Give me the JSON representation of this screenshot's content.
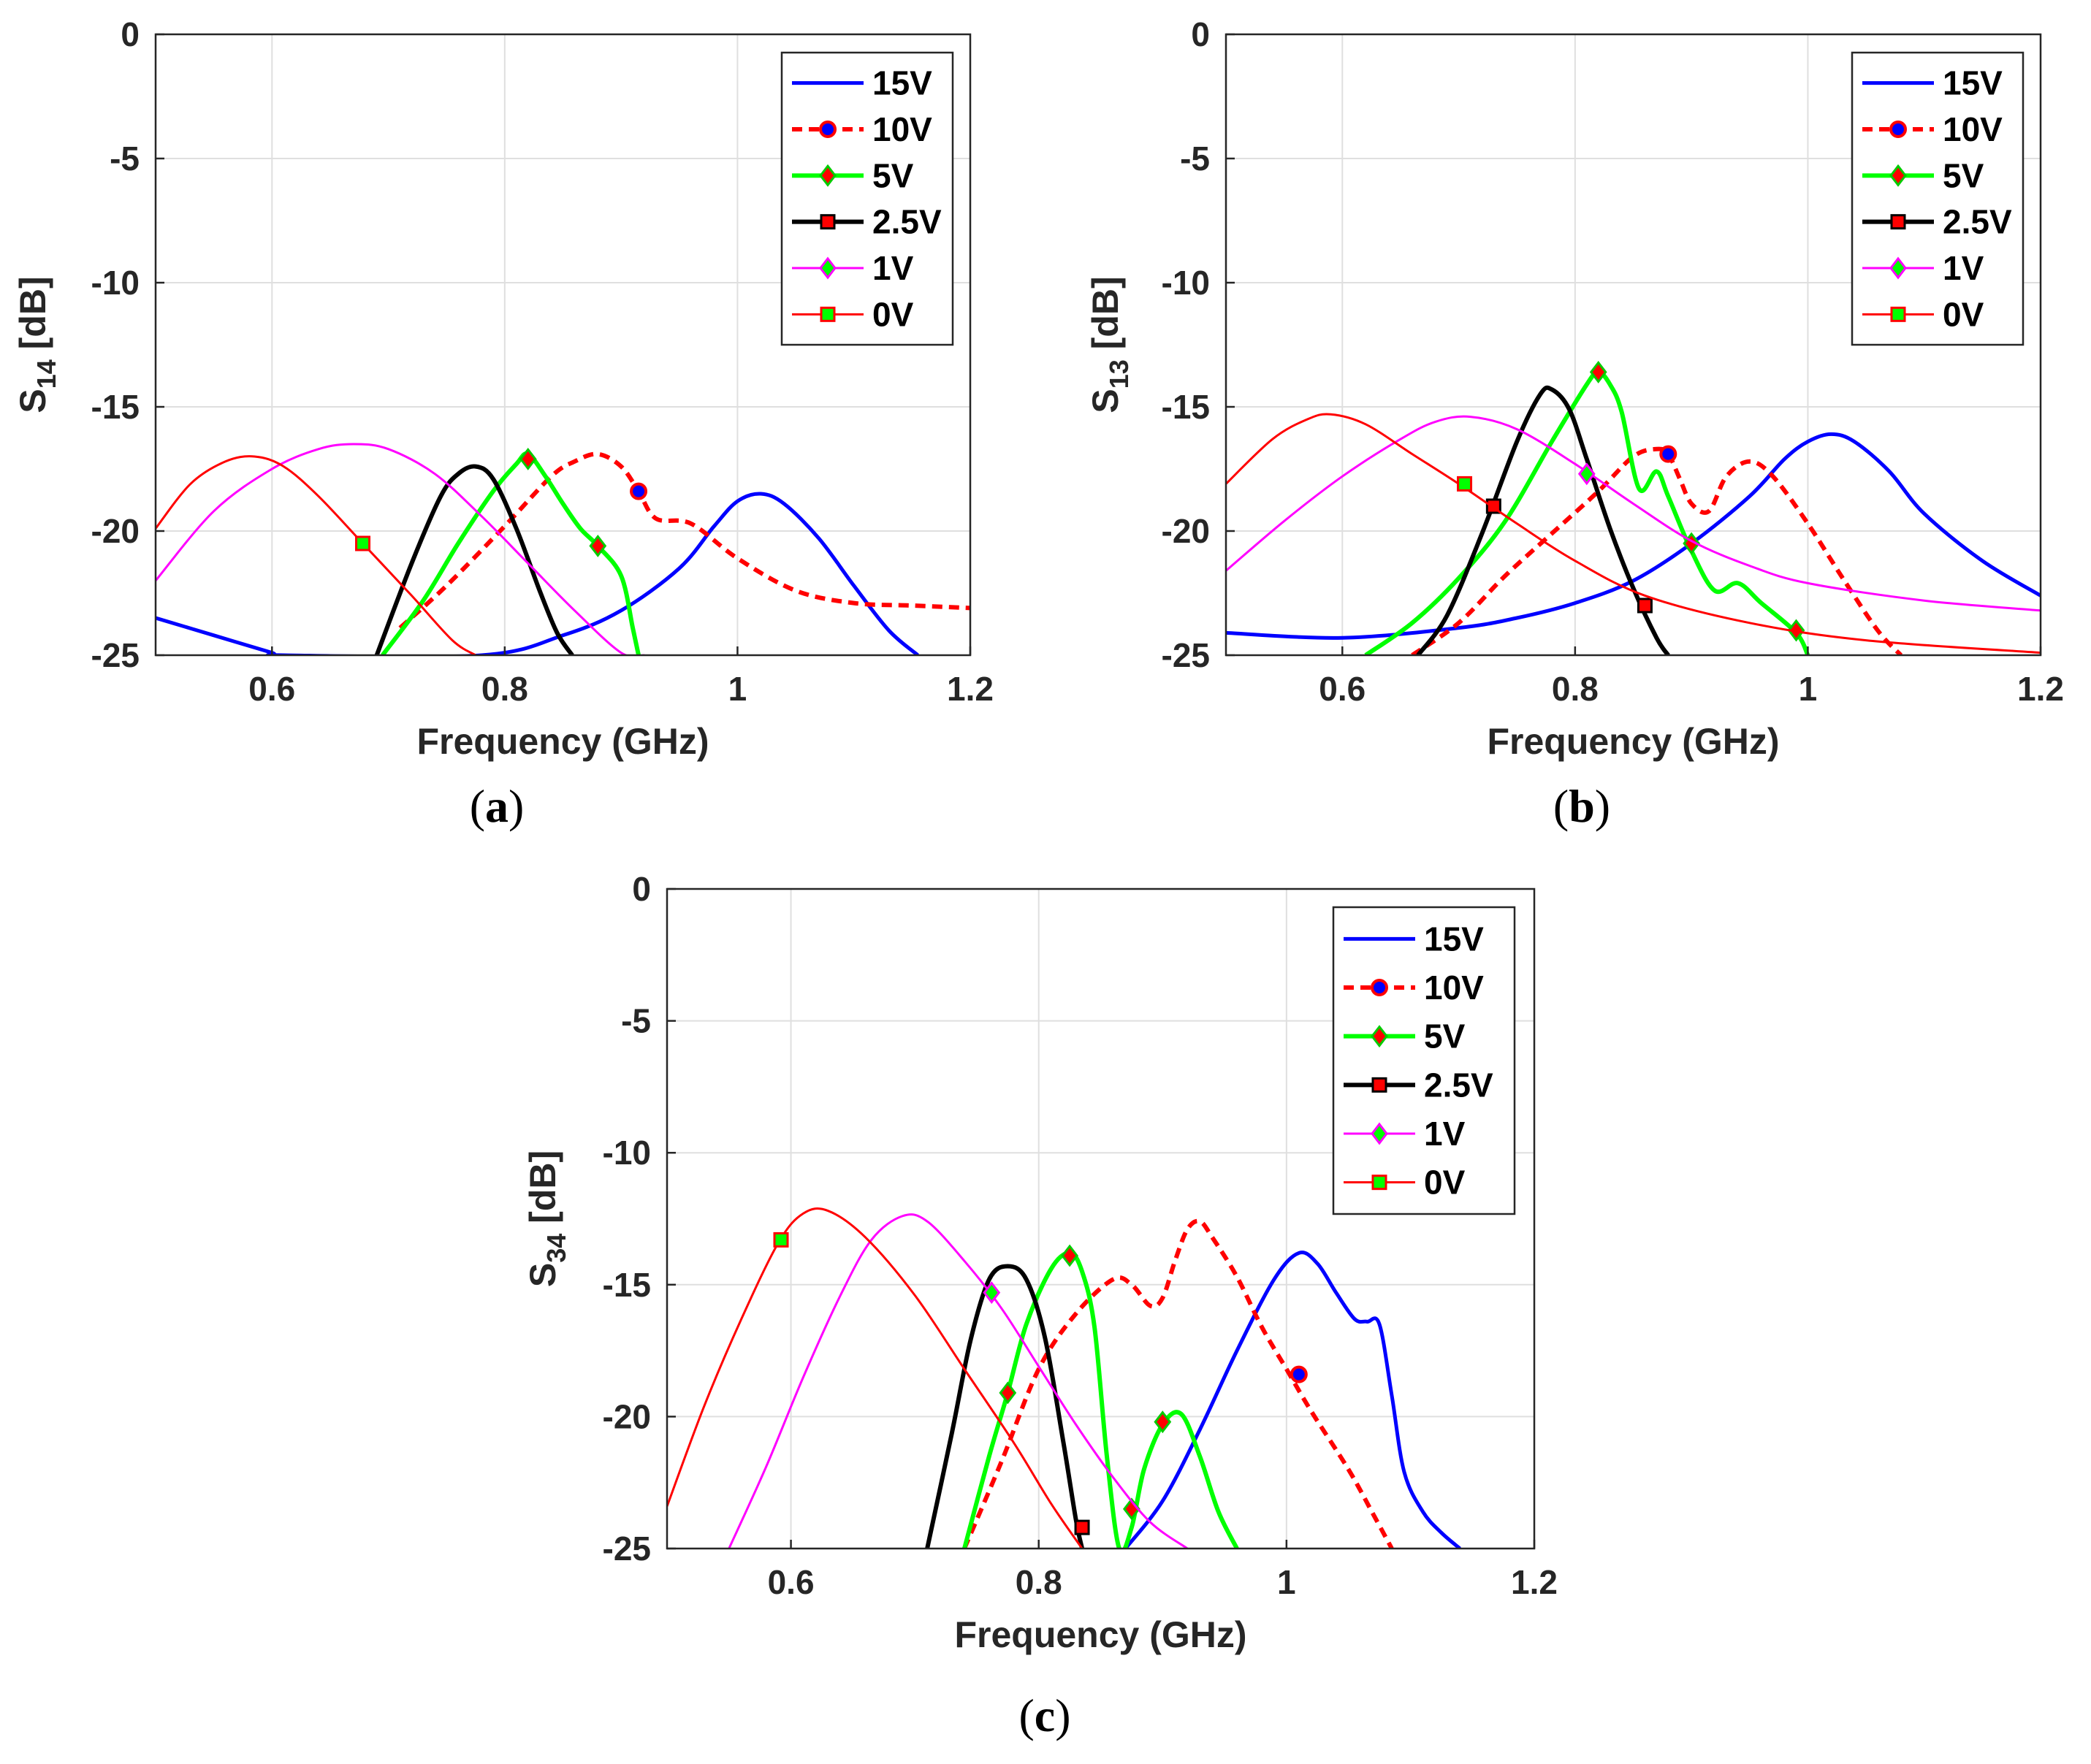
{
  "chart_data": [
    {
      "id": "a",
      "type": "line",
      "caption": "a",
      "xlabel": "Frequency (GHz)",
      "ylabel_main": "S",
      "ylabel_sub": "14",
      "ylabel_unit": " [dB]",
      "xlim": [
        0.5,
        1.2
      ],
      "ylim": [
        -25,
        0
      ],
      "xticks": [
        0.6,
        0.8,
        1,
        1.2
      ],
      "xtick_labels": [
        "0.6",
        "0.8",
        "1",
        "1.2"
      ],
      "yticks": [
        0,
        -5,
        -10,
        -15,
        -20,
        -25
      ],
      "ytick_labels": [
        "0",
        "-5",
        "-10",
        "-15",
        "-20",
        "-25"
      ],
      "grid": true,
      "legend_position": "top-right",
      "series": [
        {
          "name": "15V",
          "color": "#0000ff",
          "width": 5,
          "dash": "",
          "marker": "none",
          "x": [
            0.5,
            0.55,
            0.6,
            0.61,
            0.78,
            0.85,
            0.9,
            0.95,
            0.98,
            1.0,
            1.02,
            1.04,
            1.07,
            1.1,
            1.13,
            1.155
          ],
          "y": [
            -23.5,
            -24.2,
            -24.9,
            -25,
            -25,
            -24.2,
            -23.2,
            -21.5,
            -19.8,
            -18.8,
            -18.5,
            -18.9,
            -20.3,
            -22.2,
            -24,
            -25
          ]
        },
        {
          "name": "10V",
          "color": "#ff0000",
          "width": 6,
          "dash": "14,9",
          "marker": "circle",
          "markerFill": "#0000ff",
          "markerStroke": "#ff0000",
          "x": [
            0.71,
            0.75,
            0.8,
            0.84,
            0.86,
            0.88,
            0.9,
            0.915,
            0.93,
            0.96,
            1.0,
            1.05,
            1.1,
            1.15,
            1.2
          ],
          "y": [
            -23.9,
            -22.2,
            -19.8,
            -17.8,
            -17.2,
            -16.9,
            -17.4,
            -18.4,
            -19.5,
            -19.7,
            -21.1,
            -22.4,
            -22.9,
            -23,
            -23.1
          ],
          "mx": [
            0.915
          ],
          "my": [
            -18.4
          ]
        },
        {
          "name": "5V",
          "color": "#00ff00",
          "width": 6,
          "dash": "",
          "marker": "diamond",
          "markerFill": "#ff0000",
          "markerStroke": "#00cc00",
          "x": [
            0.695,
            0.73,
            0.76,
            0.79,
            0.81,
            0.82,
            0.835,
            0.85,
            0.865,
            0.88,
            0.9,
            0.91,
            0.915
          ],
          "y": [
            -25,
            -22.8,
            -20.5,
            -18.4,
            -17.3,
            -16.9,
            -17.8,
            -18.9,
            -19.9,
            -20.6,
            -21.8,
            -23.9,
            -25
          ],
          "mx": [
            0.82,
            0.88
          ],
          "my": [
            -17.1,
            -20.6
          ]
        },
        {
          "name": "2.5V",
          "color": "#000000",
          "width": 6,
          "dash": "",
          "marker": "square",
          "markerFill": "#ff0000",
          "markerStroke": "#000000",
          "x": [
            0.69,
            0.72,
            0.745,
            0.76,
            0.775,
            0.79,
            0.81,
            0.83,
            0.845,
            0.858
          ],
          "y": [
            -25,
            -21.3,
            -18.6,
            -17.7,
            -17.4,
            -17.9,
            -19.9,
            -22.4,
            -24.1,
            -25
          ],
          "mx": [],
          "my": []
        },
        {
          "name": "1V",
          "color": "#ff00ff",
          "width": 3,
          "dash": "",
          "marker": "diamond",
          "markerFill": "#00ff00",
          "markerStroke": "#ff00ff",
          "x": [
            0.5,
            0.55,
            0.6,
            0.64,
            0.67,
            0.7,
            0.74,
            0.78,
            0.82,
            0.86,
            0.9,
            0.92
          ],
          "y": [
            -22,
            -19.2,
            -17.5,
            -16.7,
            -16.5,
            -16.7,
            -17.7,
            -19.4,
            -21.3,
            -23.2,
            -24.9,
            -25
          ],
          "mx": [],
          "my": []
        },
        {
          "name": "0V",
          "color": "#ff0000",
          "width": 3,
          "dash": "",
          "marker": "square",
          "markerFill": "#00ff00",
          "markerStroke": "#ff0000",
          "x": [
            0.5,
            0.53,
            0.56,
            0.585,
            0.61,
            0.64,
            0.68,
            0.72,
            0.755,
            0.775
          ],
          "y": [
            -19.9,
            -18.1,
            -17.2,
            -17,
            -17.4,
            -18.6,
            -20.6,
            -22.6,
            -24.4,
            -25
          ],
          "mx": [
            0.678
          ],
          "my": [
            -20.5
          ]
        }
      ]
    },
    {
      "id": "b",
      "type": "line",
      "caption": "b",
      "xlabel": "Frequency (GHz)",
      "ylabel_main": "S",
      "ylabel_sub": "13",
      "ylabel_unit": " [dB]",
      "xlim": [
        0.5,
        1.2
      ],
      "ylim": [
        -25,
        0
      ],
      "xticks": [
        0.6,
        0.8,
        1,
        1.2
      ],
      "xtick_labels": [
        "0.6",
        "0.8",
        "1",
        "1.2"
      ],
      "yticks": [
        0,
        -5,
        -10,
        -15,
        -20,
        -25
      ],
      "ytick_labels": [
        "0",
        "-5",
        "-10",
        "-15",
        "-20",
        "-25"
      ],
      "grid": true,
      "legend_position": "top-right",
      "series": [
        {
          "name": "15V",
          "color": "#0000ff",
          "width": 5,
          "dash": "",
          "marker": "none",
          "x": [
            0.5,
            0.6,
            0.7,
            0.75,
            0.8,
            0.85,
            0.9,
            0.95,
            0.98,
            1.0,
            1.02,
            1.04,
            1.07,
            1.1,
            1.15,
            1.2
          ],
          "y": [
            -24.1,
            -24.3,
            -23.9,
            -23.5,
            -22.9,
            -22,
            -20.5,
            -18.6,
            -17.1,
            -16.4,
            -16.1,
            -16.4,
            -17.6,
            -19.3,
            -21.2,
            -22.6
          ]
        },
        {
          "name": "10V",
          "color": "#ff0000",
          "width": 6,
          "dash": "14,9",
          "marker": "circle",
          "markerFill": "#0000ff",
          "markerStroke": "#ff0000",
          "x": [
            0.66,
            0.7,
            0.74,
            0.78,
            0.82,
            0.85,
            0.87,
            0.88,
            0.89,
            0.9,
            0.915,
            0.93,
            0.95,
            0.97,
            1.0,
            1.03,
            1.06,
            1.08
          ],
          "y": [
            -25,
            -23.7,
            -21.8,
            -20.1,
            -18.4,
            -17,
            -16.7,
            -16.9,
            -17.9,
            -18.9,
            -19.2,
            -17.8,
            -17.2,
            -17.8,
            -19.7,
            -21.9,
            -24,
            -25
          ],
          "mx": [
            0.88
          ],
          "my": [
            -16.9
          ]
        },
        {
          "name": "5V",
          "color": "#00ff00",
          "width": 6,
          "dash": "",
          "marker": "diamond",
          "markerFill": "#ff0000",
          "markerStroke": "#00cc00",
          "x": [
            0.62,
            0.66,
            0.7,
            0.74,
            0.78,
            0.81,
            0.82,
            0.83,
            0.84,
            0.855,
            0.87,
            0.88,
            0.9,
            0.92,
            0.94,
            0.96,
            0.99,
            1.0
          ],
          "y": [
            -25,
            -23.7,
            -21.9,
            -19.6,
            -16.4,
            -14.1,
            -13.6,
            -14.1,
            -15.2,
            -18.3,
            -17.6,
            -18.6,
            -20.8,
            -22.4,
            -22.1,
            -22.9,
            -24.1,
            -25
          ],
          "mx": [
            0.82,
            0.9,
            0.99
          ],
          "my": [
            -13.6,
            -20.5,
            -24
          ]
        },
        {
          "name": "2.5V",
          "color": "#000000",
          "width": 6,
          "dash": "",
          "marker": "square",
          "markerFill": "#ff0000",
          "markerStroke": "#000000",
          "x": [
            0.665,
            0.69,
            0.72,
            0.75,
            0.77,
            0.78,
            0.795,
            0.81,
            0.83,
            0.85,
            0.87,
            0.88
          ],
          "y": [
            -25,
            -23.4,
            -20.1,
            -16.4,
            -14.5,
            -14.3,
            -15.1,
            -17.1,
            -19.9,
            -22.3,
            -24.3,
            -25
          ],
          "mx": [
            0.73,
            0.86
          ],
          "my": [
            -19,
            -23
          ]
        },
        {
          "name": "1V",
          "color": "#ff00ff",
          "width": 3,
          "dash": "",
          "marker": "diamond",
          "markerFill": "#00ff00",
          "markerStroke": "#ff00ff",
          "x": [
            0.5,
            0.55,
            0.6,
            0.65,
            0.68,
            0.71,
            0.75,
            0.8,
            0.85,
            0.9,
            0.95,
            1.0,
            1.1,
            1.2
          ],
          "y": [
            -21.6,
            -19.6,
            -17.8,
            -16.3,
            -15.6,
            -15.4,
            -15.9,
            -17.3,
            -18.9,
            -20.4,
            -21.4,
            -22.1,
            -22.8,
            -23.2
          ],
          "mx": [
            0.81
          ],
          "my": [
            -17.7
          ]
        },
        {
          "name": "0V",
          "color": "#ff0000",
          "width": 3,
          "dash": "",
          "marker": "square",
          "markerFill": "#00ff00",
          "markerStroke": "#ff0000",
          "x": [
            0.5,
            0.54,
            0.57,
            0.59,
            0.62,
            0.66,
            0.7,
            0.75,
            0.8,
            0.86,
            0.95,
            1.05,
            1.2
          ],
          "y": [
            -18.1,
            -16.3,
            -15.5,
            -15.3,
            -15.7,
            -16.9,
            -18.1,
            -19.7,
            -21.2,
            -22.6,
            -23.7,
            -24.4,
            -24.9
          ],
          "mx": [
            0.705
          ],
          "my": [
            -18.1
          ]
        }
      ]
    },
    {
      "id": "c",
      "type": "line",
      "caption": "c",
      "xlabel": "Frequency (GHz)",
      "ylabel_main": "S",
      "ylabel_sub": "34",
      "ylabel_unit": " [dB]",
      "xlim": [
        0.5,
        1.2
      ],
      "ylim": [
        -25,
        0
      ],
      "xticks": [
        0.6,
        0.8,
        1,
        1.2
      ],
      "xtick_labels": [
        "0.6",
        "0.8",
        "1",
        "1.2"
      ],
      "yticks": [
        0,
        -5,
        -10,
        -15,
        -20,
        -25
      ],
      "ytick_labels": [
        "0",
        "-5",
        "-10",
        "-15",
        "-20",
        "-25"
      ],
      "grid": true,
      "legend_position": "top-right",
      "series": [
        {
          "name": "15V",
          "color": "#0000ff",
          "width": 5,
          "dash": "",
          "marker": "none",
          "x": [
            0.87,
            0.9,
            0.93,
            0.96,
            0.99,
            1.01,
            1.025,
            1.04,
            1.055,
            1.065,
            1.075,
            1.085,
            1.095,
            1.11,
            1.125,
            1.14
          ],
          "y": [
            -25,
            -23.2,
            -20.5,
            -17.5,
            -14.8,
            -13.8,
            -14.2,
            -15.3,
            -16.3,
            -16.4,
            -16.5,
            -19.2,
            -22.1,
            -23.6,
            -24.4,
            -25
          ]
        },
        {
          "name": "10V",
          "color": "#ff0000",
          "width": 6,
          "dash": "14,9",
          "marker": "circle",
          "markerFill": "#0000ff",
          "markerStroke": "#ff0000",
          "x": [
            0.74,
            0.77,
            0.8,
            0.83,
            0.86,
            0.875,
            0.89,
            0.9,
            0.91,
            0.92,
            0.93,
            0.94,
            0.96,
            0.98,
            1.0,
            1.02,
            1.05,
            1.07,
            1.085
          ],
          "y": [
            -25,
            -21.7,
            -18.2,
            -16.1,
            -14.8,
            -15,
            -15.8,
            -15.5,
            -14.1,
            -12.9,
            -12.6,
            -13.2,
            -14.7,
            -16.6,
            -18.2,
            -19.8,
            -22,
            -23.7,
            -25
          ],
          "mx": [
            1.01
          ],
          "my": [
            -18.4
          ]
        },
        {
          "name": "5V",
          "color": "#00ff00",
          "width": 6,
          "dash": "",
          "marker": "diamond",
          "markerFill": "#ff0000",
          "markerStroke": "#00cc00",
          "x": [
            0.74,
            0.76,
            0.775,
            0.79,
            0.81,
            0.825,
            0.835,
            0.845,
            0.855,
            0.865,
            0.875,
            0.885,
            0.9,
            0.915,
            0.93,
            0.945,
            0.96
          ],
          "y": [
            -25,
            -21.5,
            -19.1,
            -16.5,
            -14.4,
            -13.8,
            -14.5,
            -16.6,
            -21.5,
            -25,
            -24.2,
            -22,
            -20.3,
            -19.9,
            -21.5,
            -23.6,
            -25
          ],
          "mx": [
            0.775,
            0.825,
            0.875,
            0.9
          ],
          "my": [
            -19.1,
            -13.9,
            -23.5,
            -20.2
          ]
        },
        {
          "name": "2.5V",
          "color": "#000000",
          "width": 6,
          "dash": "",
          "marker": "square",
          "markerFill": "#ff0000",
          "markerStroke": "#000000",
          "x": [
            0.71,
            0.73,
            0.745,
            0.76,
            0.775,
            0.79,
            0.805,
            0.82,
            0.83,
            0.835
          ],
          "y": [
            -25,
            -20.6,
            -17.1,
            -14.8,
            -14.3,
            -14.8,
            -17,
            -21,
            -23.9,
            -25
          ],
          "mx": [
            0.835
          ],
          "my": [
            -24.2
          ]
        },
        {
          "name": "1V",
          "color": "#ff00ff",
          "width": 3,
          "dash": "",
          "marker": "diamond",
          "markerFill": "#00ff00",
          "markerStroke": "#ff00ff",
          "x": [
            0.55,
            0.58,
            0.61,
            0.64,
            0.665,
            0.69,
            0.71,
            0.74,
            0.77,
            0.8,
            0.83,
            0.86,
            0.89,
            0.92
          ],
          "y": [
            -25,
            -21.9,
            -18.5,
            -15.4,
            -13.3,
            -12.4,
            -12.6,
            -14.1,
            -15.9,
            -18.1,
            -20.3,
            -22.3,
            -24,
            -25
          ],
          "mx": [
            0.762
          ],
          "my": [
            -15.3
          ]
        },
        {
          "name": "0V",
          "color": "#ff0000",
          "width": 3,
          "dash": "",
          "marker": "square",
          "markerFill": "#00ff00",
          "markerStroke": "#ff0000",
          "x": [
            0.5,
            0.53,
            0.56,
            0.59,
            0.61,
            0.63,
            0.66,
            0.7,
            0.74,
            0.78,
            0.81,
            0.835
          ],
          "y": [
            -23.4,
            -19.6,
            -16.3,
            -13.4,
            -12.3,
            -12.2,
            -13.2,
            -15.4,
            -18.2,
            -21,
            -23.3,
            -25
          ],
          "mx": [
            0.592
          ],
          "my": [
            -13.3
          ]
        }
      ]
    }
  ]
}
